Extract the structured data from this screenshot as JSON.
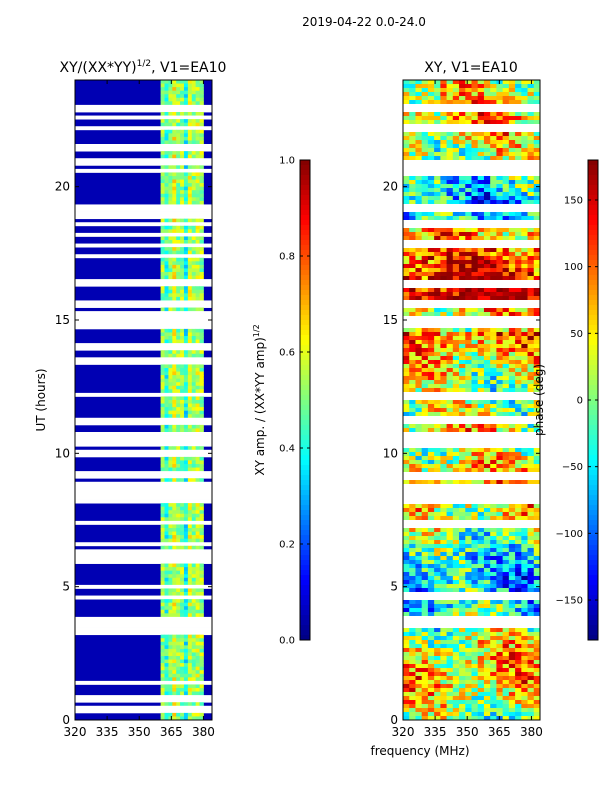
{
  "figure": {
    "suptitle": "2019-04-22 0.0-24.0",
    "shared_xlabel": "frequency (MHz)"
  },
  "chart_data": [
    {
      "type": "heatmap",
      "title_main": "XY/(XX*YY)",
      "title_sup": "1/2",
      "title_tail": ", V1=EA10",
      "xlabel": "",
      "ylabel": "UT (hours)",
      "xlim": [
        320,
        384
      ],
      "ylim": [
        0,
        24
      ],
      "xticks": [
        "320",
        "335",
        "350",
        "365",
        "380"
      ],
      "xtick_values": [
        320,
        335,
        350,
        365,
        380
      ],
      "yticks": [
        "0",
        "5",
        "10",
        "15",
        "20"
      ],
      "ytick_values": [
        0,
        5,
        10,
        15,
        20
      ],
      "active_band_mhz": [
        360,
        380
      ],
      "low_value_level": 0.05,
      "band_value_range": [
        0.25,
        0.7
      ],
      "flagged_hours": [
        0.4,
        0.8,
        1.4,
        3.3,
        3.6,
        3.8,
        4.6,
        5.0,
        6.0,
        6.3,
        6.6,
        7.4,
        8.2,
        8.4,
        8.6,
        8.8,
        9.2,
        10.0,
        10.4,
        10.7,
        11.2,
        12.2,
        13.5,
        14.0,
        14.8,
        15.0,
        15.2,
        15.6,
        16.4,
        17.4,
        17.8,
        18.2,
        18.6,
        18.9,
        19.2,
        20.6,
        20.9,
        21.5,
        22.2,
        22.6,
        22.9
      ],
      "colorbar": {
        "label_main": "XY amp. / (XX*YY amp)",
        "label_sup": "1/2",
        "range": [
          0.0,
          1.0
        ],
        "ticks": [
          "0.0",
          "0.2",
          "0.4",
          "0.6",
          "0.8",
          "1.0"
        ],
        "tick_values": [
          0.0,
          0.2,
          0.4,
          0.6,
          0.8,
          1.0
        ]
      }
    },
    {
      "type": "heatmap",
      "title": "XY, V1=EA10",
      "xlabel": "frequency (MHz)",
      "ylabel": "",
      "xlim": [
        320,
        384
      ],
      "ylim": [
        0,
        24
      ],
      "xticks": [
        "320",
        "335",
        "350",
        "365",
        "380"
      ],
      "xtick_values": [
        320,
        335,
        350,
        365,
        380
      ],
      "yticks": [
        "0",
        "5",
        "10",
        "15",
        "20"
      ],
      "ytick_values": [
        0,
        5,
        10,
        15,
        20
      ],
      "value_range_deg": [
        -180,
        180
      ],
      "flagged_hours": [
        3.6,
        3.8,
        4.6,
        7.4,
        8.2,
        8.4,
        8.7,
        9.2,
        10.4,
        10.7,
        11.2,
        12.2,
        14.8,
        15.0,
        15.6,
        16.4,
        17.8,
        18.6,
        19.2,
        20.6,
        20.9,
        22.2,
        22.9
      ],
      "colorbar": {
        "label": "phase (deg)",
        "range": [
          -180,
          180
        ],
        "ticks": [
          "−150",
          "−100",
          "−50",
          "0",
          "50",
          "100",
          "150"
        ],
        "tick_values": [
          -150,
          -100,
          -50,
          0,
          50,
          100,
          150
        ]
      }
    }
  ]
}
